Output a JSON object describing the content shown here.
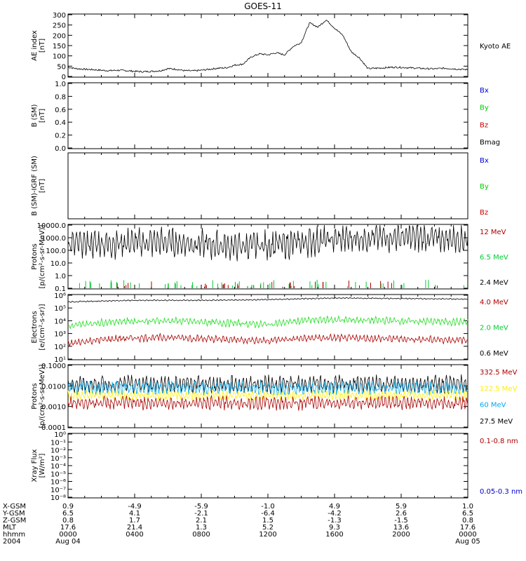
{
  "title": "GOES-11",
  "chart_data": [
    {
      "id": "ae",
      "type": "line",
      "ylabel": [
        "AE index",
        "[nT]"
      ],
      "yticks": [
        "0",
        "50",
        "100",
        "150",
        "200",
        "250",
        "300"
      ],
      "ylim": [
        0,
        300
      ],
      "legend": [
        {
          "label": "Kyoto AE",
          "color": "#000000"
        }
      ],
      "series": [
        {
          "name": "Kyoto AE",
          "color": "#000000",
          "x": [
            0,
            0.5,
            1,
            1.5,
            2,
            2.5,
            3,
            3.5,
            4,
            4.5,
            5,
            5.5,
            6,
            6.5,
            7,
            7.5,
            8,
            8.5,
            9,
            9.5,
            10,
            10.5,
            11,
            11.5,
            12,
            12.5,
            13,
            13.5,
            14,
            14.5,
            15,
            15.5,
            16,
            16.5,
            17,
            17.5,
            18,
            18.5,
            19,
            19.5,
            20,
            20.5,
            21,
            21.5,
            22,
            22.5,
            23,
            23.5,
            24
          ],
          "y": [
            45,
            38,
            35,
            33,
            30,
            28,
            30,
            28,
            25,
            23,
            25,
            27,
            38,
            35,
            28,
            27,
            30,
            35,
            40,
            42,
            55,
            60,
            95,
            110,
            105,
            115,
            105,
            145,
            165,
            260,
            240,
            275,
            235,
            200,
            120,
            90,
            38,
            40,
            42,
            45,
            44,
            42,
            40,
            38,
            37,
            40,
            38,
            35,
            33
          ]
        }
      ]
    },
    {
      "id": "bsm",
      "type": "line",
      "ylabel": [
        "B (SM)",
        "[nT]"
      ],
      "yticks": [
        "0.0",
        "0.2",
        "0.4",
        "0.6",
        "0.8",
        "1.0"
      ],
      "ylim": [
        0,
        1
      ],
      "legend": [
        {
          "label": "Bx",
          "color": "#0000cc"
        },
        {
          "label": "By",
          "color": "#00cc00"
        },
        {
          "label": "Bz",
          "color": "#cc0000"
        },
        {
          "label": "Bmag",
          "color": "#000000"
        }
      ],
      "series": []
    },
    {
      "id": "bigrf",
      "type": "line",
      "ylabel": [
        "B (SM)-IGRF (SM)",
        "[nT]"
      ],
      "yticks": [],
      "ylim": [
        0,
        1
      ],
      "legend": [
        {
          "label": "Bx",
          "color": "#0000cc"
        },
        {
          "label": "By",
          "color": "#00cc00"
        },
        {
          "label": "Bz",
          "color": "#cc0000"
        }
      ],
      "series": []
    },
    {
      "id": "protons_low",
      "type": "line",
      "log": true,
      "ylabel": [
        "Protons",
        "[p/(cm²-s-sr-MeV)]"
      ],
      "yticks": [
        "0.1",
        "1.0",
        "10.0",
        "100.0",
        "1000.0",
        "10000.0"
      ],
      "ylim": [
        0.1,
        10000
      ],
      "legend": [
        {
          "label": "12 MeV",
          "color": "#aa0000"
        },
        {
          "label": "6.5 MeV",
          "color": "#00cc33"
        },
        {
          "label": "2.4 MeV",
          "color": "#000000"
        }
      ],
      "series": [
        {
          "name": "2.4 MeV",
          "color": "#000000",
          "x": [
            0,
            2,
            4,
            6,
            8,
            10,
            12,
            14,
            16,
            18,
            20,
            22,
            24
          ],
          "y": [
            300,
            350,
            400,
            450,
            300,
            200,
            250,
            400,
            700,
            1000,
            1100,
            900,
            800
          ],
          "osc": 1.2
        }
      ]
    },
    {
      "id": "electrons",
      "type": "line",
      "log": true,
      "ylabel": [
        "Electrons",
        "[e/(cm²-s-sr)]"
      ],
      "yticks": [
        "10¹",
        "10²",
        "10³",
        "10⁴",
        "10⁵",
        "10⁶"
      ],
      "ylim": [
        10,
        1000000
      ],
      "legend": [
        {
          "label": "4.0 MeV",
          "color": "#aa0000"
        },
        {
          "label": "2.0 MeV",
          "color": "#00cc33"
        },
        {
          "label": "0.6 MeV",
          "color": "#000000"
        }
      ],
      "series": [
        {
          "name": "0.6 MeV",
          "color": "#000000",
          "x": [
            0,
            4,
            8,
            12,
            16,
            20,
            24
          ],
          "y": [
            300000,
            400000,
            400000,
            450000,
            600000,
            550000,
            500000
          ],
          "osc": 0.05
        },
        {
          "name": "2.0 MeV",
          "color": "#22dd22",
          "x": [
            0,
            3,
            6,
            9,
            12,
            15,
            18,
            21,
            24
          ],
          "y": [
            3500,
            9000,
            10000,
            7000,
            5000,
            12000,
            11000,
            9000,
            8000
          ],
          "osc": 0.3
        },
        {
          "name": "4.0 MeV",
          "color": "#aa0000",
          "x": [
            0,
            3,
            6,
            9,
            12,
            15,
            18,
            21,
            24
          ],
          "y": [
            150,
            400,
            500,
            350,
            280,
            450,
            420,
            350,
            300
          ],
          "osc": 0.3
        }
      ]
    },
    {
      "id": "protons_high",
      "type": "line",
      "log": true,
      "ylabel": [
        "Protons",
        "[p/(cm²-s-sr-MeV)]"
      ],
      "yticks": [
        "0.0001",
        "0.0010",
        "0.0100",
        "0.1000"
      ],
      "ylim": [
        0.0001,
        0.1
      ],
      "legend": [
        {
          "label": "332.5 MeV",
          "color": "#aa0000"
        },
        {
          "label": "122.5 MeV",
          "color": "#ffee00"
        },
        {
          "label": "60 MeV",
          "color": "#00aaee"
        },
        {
          "label": "27.5 MeV",
          "color": "#000000"
        }
      ],
      "series": [
        {
          "name": "27.5 MeV",
          "color": "#000000",
          "x": [
            0,
            24
          ],
          "y": [
            0.012,
            0.012
          ],
          "osc": 0.45
        },
        {
          "name": "60 MeV",
          "color": "#00aaee",
          "x": [
            0,
            24
          ],
          "y": [
            0.008,
            0.008
          ],
          "osc": 0.35
        },
        {
          "name": "122.5 MeV",
          "color": "#ffee00",
          "x": [
            0,
            24
          ],
          "y": [
            0.0035,
            0.0035
          ],
          "osc": 0.25
        },
        {
          "name": "332.5 MeV",
          "color": "#aa0000",
          "x": [
            0,
            24
          ],
          "y": [
            0.0015,
            0.0015
          ],
          "osc": 0.35
        }
      ]
    },
    {
      "id": "xray",
      "type": "line",
      "log": true,
      "ylabel": [
        "Xray Flux",
        "[W/m²]"
      ],
      "yticks": [
        "10⁻⁸",
        "10⁻⁷",
        "10⁻⁶",
        "10⁻⁵",
        "10⁻⁴",
        "10⁻³",
        "10⁻²",
        "10⁻¹",
        "10⁰"
      ],
      "ylim": [
        1e-08,
        1
      ],
      "legend": [
        {
          "label": "0.1-0.8 nm",
          "color": "#aa0000"
        },
        {
          "label": "0.05-0.3 nm",
          "color": "#0000cc"
        }
      ],
      "series": []
    }
  ],
  "orbit": {
    "row_labels": [
      "X-GSM",
      "Y-GSM",
      "Z-GSM",
      "MLT",
      "hhmm",
      "2004"
    ],
    "columns": [
      [
        "0.9",
        "6.5",
        "0.8",
        "17.6",
        "0000",
        "Aug 04"
      ],
      [
        "-4.9",
        "4.1",
        "1.7",
        "21.4",
        "0400",
        ""
      ],
      [
        "-5.9",
        "-2.1",
        "2.1",
        "1.3",
        "0800",
        ""
      ],
      [
        "-1.0",
        "-6.4",
        "1.5",
        "5.2",
        "1200",
        ""
      ],
      [
        "4.9",
        "-4.2",
        "-1.3",
        "9.3",
        "1600",
        ""
      ],
      [
        "5.9",
        "2.6",
        "-1.5",
        "13.6",
        "2000",
        ""
      ],
      [
        "1.0",
        "6.5",
        "0.8",
        "17.6",
        "0000",
        "Aug 05"
      ]
    ]
  }
}
